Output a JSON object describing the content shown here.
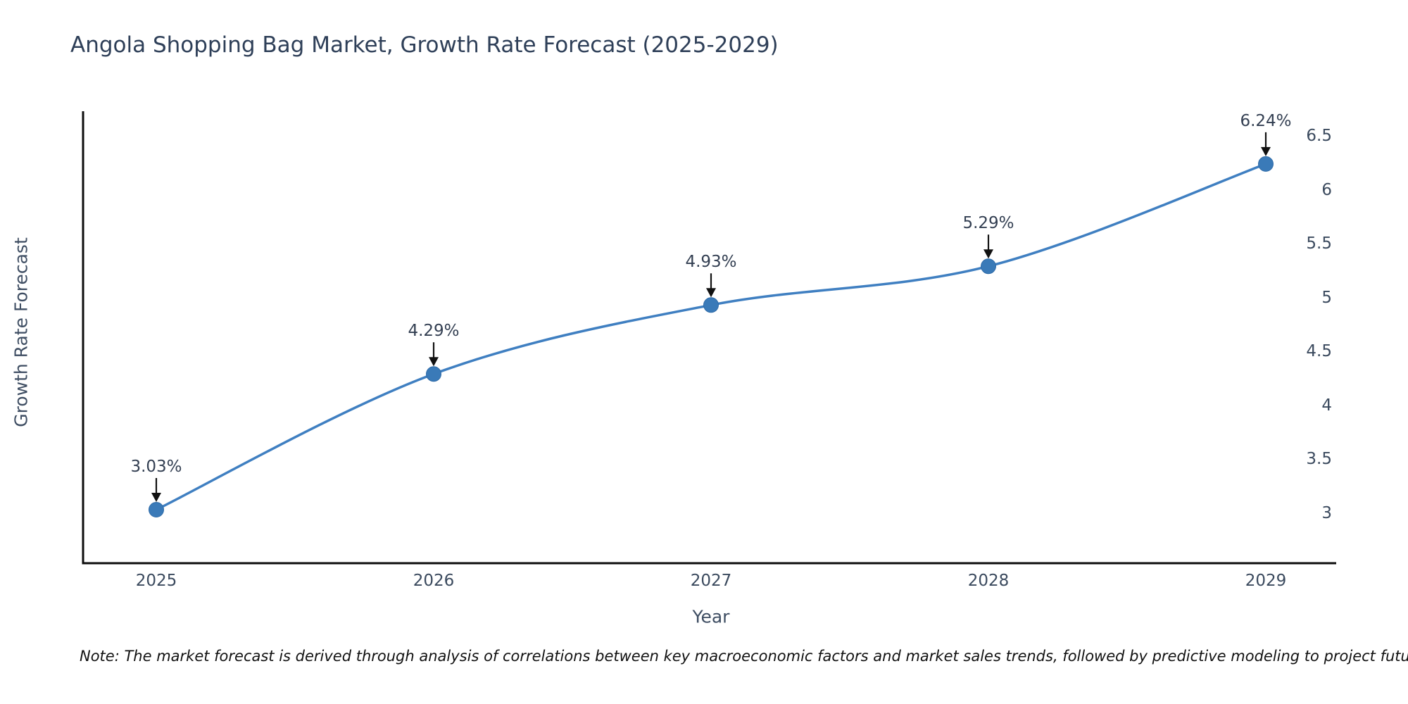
{
  "title": "Angola Shopping Bag Market, Growth Rate Forecast (2025-2029)",
  "note": "Note: The market forecast is derived through analysis of correlations between key macroeconomic factors and market sales trends, followed by predictive modeling to project future sales",
  "chart_data": {
    "type": "line",
    "title": "Angola Shopping Bag Market, Growth Rate Forecast (2025-2029)",
    "xlabel": "Year",
    "ylabel": "Growth Rate Forecast",
    "categories": [
      "2025",
      "2026",
      "2027",
      "2028",
      "2029"
    ],
    "series": [
      {
        "name": "Growth Rate Forecast",
        "values": [
          3.03,
          4.29,
          4.93,
          5.29,
          6.24
        ]
      }
    ],
    "point_labels": [
      "3.03%",
      "4.29%",
      "4.93%",
      "5.29%",
      "6.24%"
    ],
    "yticks": [
      3,
      3.5,
      4,
      4.5,
      5,
      5.5,
      6,
      6.5
    ],
    "ylim": [
      2.55,
      6.7
    ],
    "grid": false,
    "legend": false,
    "smooth": true,
    "colors": {
      "line": "#3f7fc1",
      "marker_fill": "#3a7ab8",
      "marker_edge": "#2f6ba8",
      "spine": "#0d0d0d",
      "arrow": "#111111",
      "title_text": "#2e3f58",
      "tick_text": "#3b4a5e"
    }
  }
}
